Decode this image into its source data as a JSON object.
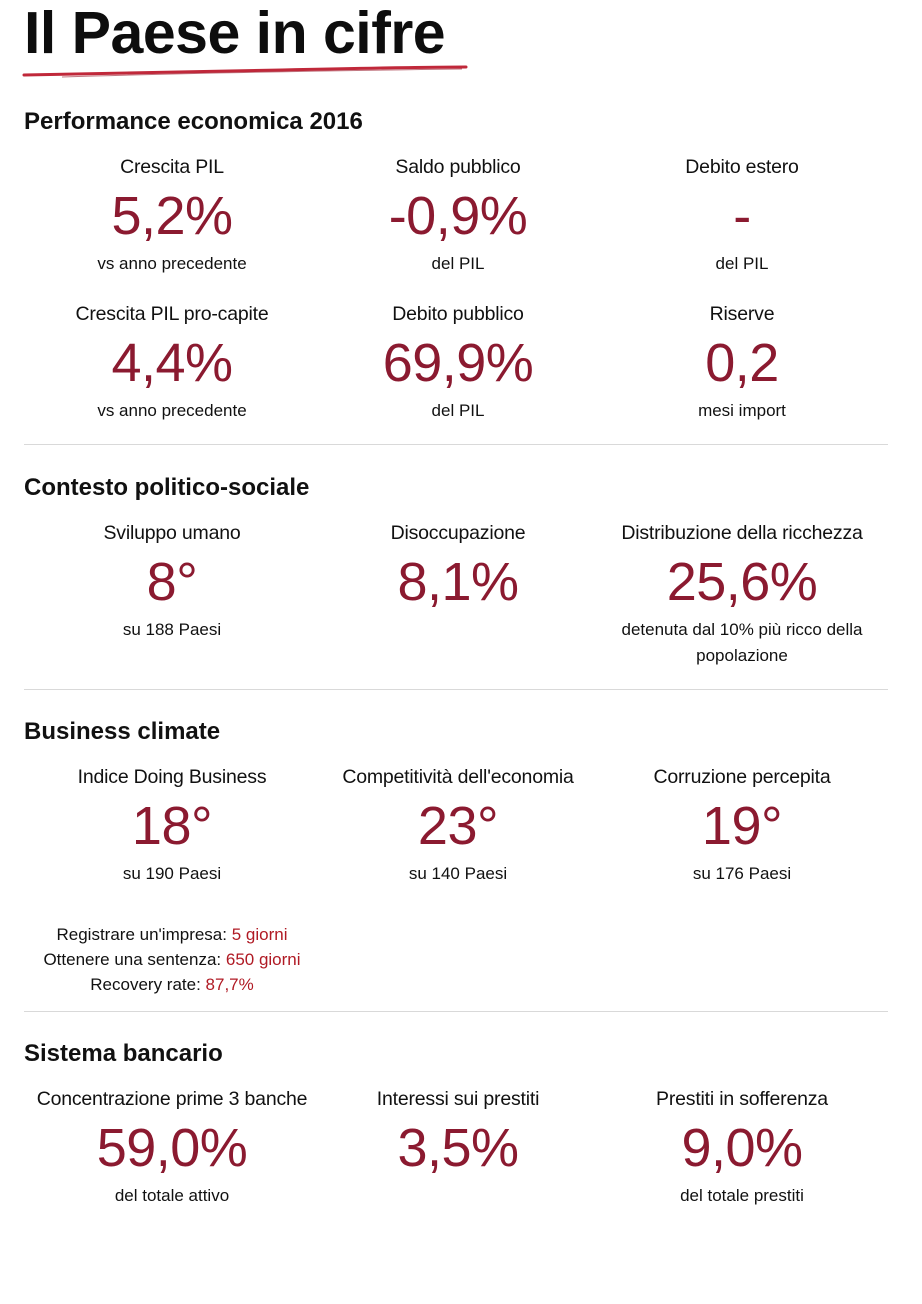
{
  "title": "Il Paese in cifre",
  "colors": {
    "accent": "#8b1a30",
    "highlight": "#b01a24",
    "underline": "#c0283a"
  },
  "sections": {
    "performance": {
      "title": "Performance economica 2016",
      "metrics": [
        {
          "label": "Crescita PIL",
          "value": "5,2%",
          "note": "vs anno precedente"
        },
        {
          "label": "Saldo pubblico",
          "value": "-0,9%",
          "note": "del PIL"
        },
        {
          "label": "Debito estero",
          "value": "-",
          "note": "del PIL"
        },
        {
          "label": "Crescita PIL pro-capite",
          "value": "4,4%",
          "note": "vs anno precedente"
        },
        {
          "label": "Debito pubblico",
          "value": "69,9%",
          "note": "del PIL"
        },
        {
          "label": "Riserve",
          "value": "0,2",
          "note": "mesi import"
        }
      ]
    },
    "politico": {
      "title": "Contesto politico-sociale",
      "metrics": [
        {
          "label": "Sviluppo umano",
          "value": "8°",
          "note": "su 188 Paesi"
        },
        {
          "label": "Disoccupazione",
          "value": "8,1%",
          "note": ""
        },
        {
          "label": "Distribuzione della ricchezza",
          "value": "25,6%",
          "note_line1": "detenuta dal 10% più ricco della",
          "note_line2": "popolazione"
        }
      ]
    },
    "business": {
      "title": "Business climate",
      "metrics": [
        {
          "label": "Indice Doing Business",
          "value": "18°",
          "note": "su 190 Paesi"
        },
        {
          "label": "Competitività dell'economia",
          "value": "23°",
          "note": "su 140 Paesi"
        },
        {
          "label": "Corruzione percepita",
          "value": "19°",
          "note": "su 176 Paesi"
        }
      ],
      "details": [
        {
          "label": "Registrare un'impresa: ",
          "value": "5 giorni"
        },
        {
          "label": "Ottenere una sentenza: ",
          "value": "650 giorni"
        },
        {
          "label": "Recovery rate: ",
          "value": "87,7%"
        }
      ]
    },
    "bancario": {
      "title": "Sistema bancario",
      "metrics": [
        {
          "label": "Concentrazione prime 3 banche",
          "value": "59,0%",
          "note": "del totale attivo"
        },
        {
          "label": "Interessi sui prestiti",
          "value": "3,5%",
          "note": ""
        },
        {
          "label": "Prestiti in sofferenza",
          "value": "9,0%",
          "note": "del totale prestiti"
        }
      ]
    }
  }
}
